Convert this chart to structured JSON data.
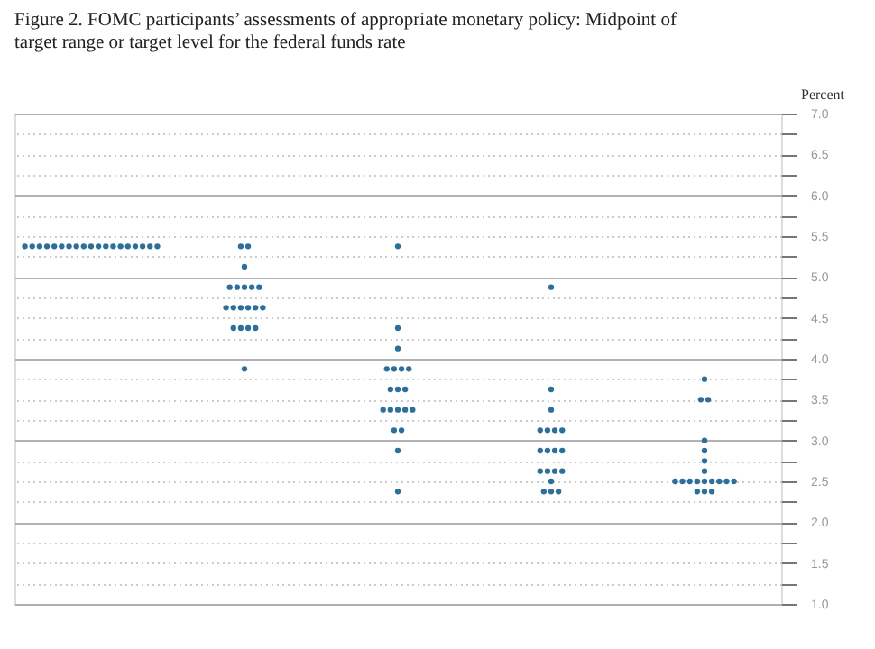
{
  "chart_data": {
    "type": "scatter",
    "title": "Figure 2.  FOMC participants’ assessments of appropriate monetary policy:  Midpoint of target range or target level for the federal funds rate",
    "ylabel": "Percent",
    "categories": [
      null,
      null,
      null,
      null,
      null
    ],
    "ylim": [
      1.0,
      7.0
    ],
    "yticks": [
      {
        "value": 1.0,
        "label": "1.0"
      },
      {
        "value": 1.25,
        "label": null
      },
      {
        "value": 1.5,
        "label": "1.5"
      },
      {
        "value": 1.75,
        "label": null
      },
      {
        "value": 2.0,
        "label": "2.0"
      },
      {
        "value": 2.25,
        "label": null
      },
      {
        "value": 2.5,
        "label": "2.5"
      },
      {
        "value": 2.75,
        "label": null
      },
      {
        "value": 3.0,
        "label": "3.0"
      },
      {
        "value": 3.25,
        "label": null
      },
      {
        "value": 3.5,
        "label": "3.5"
      },
      {
        "value": 3.75,
        "label": null
      },
      {
        "value": 4.0,
        "label": "4.0"
      },
      {
        "value": 4.25,
        "label": null
      },
      {
        "value": 4.5,
        "label": "4.5"
      },
      {
        "value": 4.75,
        "label": null
      },
      {
        "value": 5.0,
        "label": "5.0"
      },
      {
        "value": 5.25,
        "label": null
      },
      {
        "value": 5.5,
        "label": "5.5"
      },
      {
        "value": 5.75,
        "label": null
      },
      {
        "value": 6.0,
        "label": "6.0"
      },
      {
        "value": 6.25,
        "label": null
      },
      {
        "value": 6.5,
        "label": "6.5"
      },
      {
        "value": 6.75,
        "label": null
      },
      {
        "value": 7.0,
        "label": "7.0"
      }
    ],
    "grid": "y",
    "marker": "circle",
    "tick_labels": "y",
    "series": [
      {
        "color": "#2c6f9a",
        "values": [
          5.375,
          5.375,
          5.375,
          4.875,
          3.75
        ]
      },
      {
        "color": "#2c6f9a",
        "values": [
          5.375,
          5.375,
          4.375,
          3.625,
          3.5
        ]
      },
      {
        "color": "#2c6f9a",
        "values": [
          5.375,
          5.125,
          4.125,
          3.375,
          3.5
        ]
      },
      {
        "color": "#2c6f9a",
        "values": [
          5.375,
          4.875,
          3.875,
          3.125,
          3.0
        ]
      },
      {
        "color": "#2c6f9a",
        "values": [
          5.375,
          4.875,
          3.875,
          3.125,
          2.875
        ]
      },
      {
        "color": "#2c6f9a",
        "values": [
          5.375,
          4.875,
          3.875,
          3.125,
          2.75
        ]
      },
      {
        "color": "#2c6f9a",
        "values": [
          5.375,
          4.875,
          3.875,
          3.125,
          2.625
        ]
      },
      {
        "color": "#2c6f9a",
        "values": [
          5.375,
          4.875,
          3.625,
          2.875,
          2.5
        ]
      },
      {
        "color": "#2c6f9a",
        "values": [
          5.375,
          4.625,
          3.625,
          2.875,
          2.5
        ]
      },
      {
        "color": "#2c6f9a",
        "values": [
          5.375,
          4.625,
          3.625,
          2.875,
          2.5
        ]
      },
      {
        "color": "#2c6f9a",
        "values": [
          5.375,
          4.625,
          3.375,
          2.875,
          2.5
        ]
      },
      {
        "color": "#2c6f9a",
        "values": [
          5.375,
          4.625,
          3.375,
          2.625,
          2.5
        ]
      },
      {
        "color": "#2c6f9a",
        "values": [
          5.375,
          4.625,
          3.375,
          2.625,
          2.5
        ]
      },
      {
        "color": "#2c6f9a",
        "values": [
          5.375,
          4.625,
          3.375,
          2.625,
          2.5
        ]
      },
      {
        "color": "#2c6f9a",
        "values": [
          5.375,
          4.375,
          3.375,
          2.625,
          2.5
        ]
      },
      {
        "color": "#2c6f9a",
        "values": [
          5.375,
          4.375,
          3.125,
          2.5,
          2.5
        ]
      },
      {
        "color": "#2c6f9a",
        "values": [
          5.375,
          4.375,
          3.125,
          2.375,
          2.375
        ]
      },
      {
        "color": "#2c6f9a",
        "values": [
          5.375,
          4.375,
          2.875,
          2.375,
          2.375
        ]
      },
      {
        "color": "#2c6f9a",
        "values": [
          5.375,
          3.875,
          2.375,
          2.375,
          2.375
        ]
      }
    ]
  }
}
